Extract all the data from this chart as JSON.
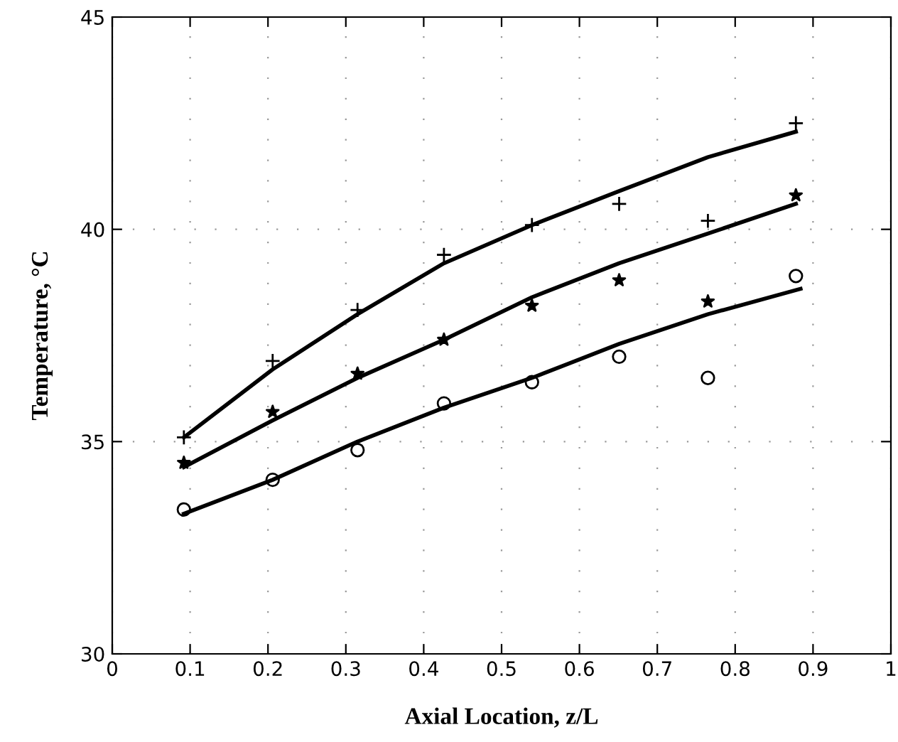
{
  "chart_data": {
    "type": "scatter",
    "xlabel": "Axial Location, z/L",
    "ylabel": "Temperature, °C",
    "xlim": [
      0,
      1
    ],
    "ylim": [
      30,
      45
    ],
    "xticks": [
      0,
      0.1,
      0.2,
      0.3,
      0.4,
      0.5,
      0.6,
      0.7,
      0.8,
      0.9,
      1
    ],
    "yticks": [
      30,
      35,
      40,
      45
    ],
    "grid": true,
    "legend": false,
    "series": [
      {
        "marker": "cross",
        "color": "#000000",
        "x": [
          0.092,
          0.206,
          0.315,
          0.426,
          0.539,
          0.651,
          0.765,
          0.878
        ],
        "values": [
          35.1,
          36.9,
          38.1,
          39.4,
          40.1,
          40.6,
          40.2,
          42.5
        ]
      },
      {
        "marker": "star",
        "color": "#000000",
        "x": [
          0.092,
          0.206,
          0.315,
          0.426,
          0.539,
          0.651,
          0.765,
          0.878
        ],
        "values": [
          34.5,
          35.7,
          36.6,
          37.4,
          38.2,
          38.8,
          38.3,
          40.8
        ]
      },
      {
        "marker": "circle",
        "color": "#000000",
        "x": [
          0.092,
          0.206,
          0.315,
          0.426,
          0.539,
          0.651,
          0.765,
          0.878
        ],
        "values": [
          33.4,
          34.1,
          34.8,
          35.9,
          36.4,
          37.0,
          36.5,
          38.9
        ]
      },
      {
        "type": "line",
        "line_style": "solid",
        "color": "#000000",
        "x": [
          0.092,
          0.206,
          0.315,
          0.426,
          0.539,
          0.651,
          0.765,
          0.878
        ],
        "values": [
          35.1,
          36.7,
          38.0,
          39.2,
          40.1,
          40.9,
          41.7,
          42.3
        ]
      },
      {
        "type": "line",
        "line_style": "solid",
        "color": "#000000",
        "x": [
          0.092,
          0.206,
          0.315,
          0.426,
          0.539,
          0.651,
          0.765,
          0.878
        ],
        "values": [
          34.4,
          35.5,
          36.5,
          37.4,
          38.4,
          39.2,
          39.9,
          40.6
        ]
      },
      {
        "type": "line",
        "line_style": "solid",
        "color": "#000000",
        "x": [
          0.092,
          0.206,
          0.315,
          0.426,
          0.539,
          0.651,
          0.765,
          0.884
        ],
        "values": [
          33.3,
          34.1,
          35.0,
          35.8,
          36.5,
          37.3,
          38.0,
          38.6
        ]
      }
    ]
  }
}
